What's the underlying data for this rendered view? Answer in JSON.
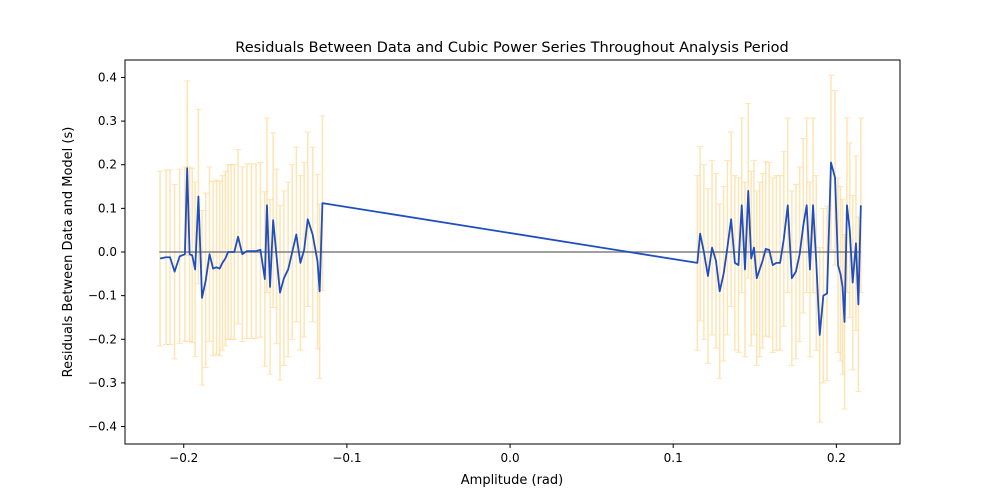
{
  "chart_data": {
    "type": "line",
    "title": "Residuals Between Data and Cubic Power Series Throughout Analysis Period",
    "xlabel": "Amplitude (rad)",
    "ylabel": "Residuals Between Data and Model (s)",
    "xlim": [
      -0.236,
      0.239
    ],
    "ylim": [
      -0.44,
      0.44
    ],
    "xticks": [
      -0.2,
      -0.1,
      0.0,
      0.1,
      0.2
    ],
    "xtick_labels": [
      "−0.2",
      "−0.1",
      "0.0",
      "0.1",
      "0.2"
    ],
    "yticks": [
      -0.4,
      -0.3,
      -0.2,
      -0.1,
      0.0,
      0.1,
      0.2,
      0.3,
      0.4
    ],
    "ytick_labels": [
      "−0.4",
      "−0.3",
      "−0.2",
      "−0.1",
      "0.0",
      "0.1",
      "0.2",
      "0.3",
      "0.4"
    ],
    "grid": false,
    "zero_line": {
      "y": 0.0,
      "x_range": [
        -0.215,
        0.215
      ],
      "color": "#808080"
    },
    "series": [
      {
        "kind": "line_with_errorbars",
        "line_color": "#1f4fbf",
        "errorbar_color": "#ffc45a",
        "x": [
          -0.2145,
          -0.2108,
          -0.2084,
          -0.2056,
          -0.2025,
          -0.1993,
          -0.1979,
          -0.1964,
          -0.1948,
          -0.193,
          -0.191,
          -0.1888,
          -0.1865,
          -0.1842,
          -0.182,
          -0.1799,
          -0.178,
          -0.1763,
          -0.1745,
          -0.1728,
          -0.171,
          -0.169,
          -0.1667,
          -0.1641,
          -0.1613,
          -0.1585,
          -0.1557,
          -0.153,
          -0.1503,
          -0.149,
          -0.1471,
          -0.1452,
          -0.1431,
          -0.141,
          -0.1386,
          -0.136,
          -0.1335,
          -0.131,
          -0.1285,
          -0.1262,
          -0.124,
          -0.121,
          -0.118,
          -0.1167,
          -0.115,
          0.1148,
          0.1165,
          0.1188,
          0.1213,
          0.1238,
          0.1262,
          0.1285,
          0.1309,
          0.1332,
          0.1355,
          0.1378,
          0.14,
          0.142,
          0.144,
          0.146,
          0.1478,
          0.1495,
          0.1512,
          0.153,
          0.1548,
          0.1567,
          0.1588,
          0.161,
          0.1632,
          0.1655,
          0.1678,
          0.1702,
          0.1727,
          0.1752,
          0.1775,
          0.1797,
          0.1818,
          0.1838,
          0.1857,
          0.1877,
          0.1898,
          0.192,
          0.1943,
          0.1967,
          0.1992,
          0.201,
          0.2025,
          0.2038,
          0.205,
          0.2065,
          0.2082,
          0.21,
          0.212,
          0.2135,
          0.215
        ],
        "y": [
          -0.015,
          -0.012,
          -0.012,
          -0.045,
          -0.01,
          -0.005,
          0.192,
          -0.005,
          -0.008,
          -0.04,
          0.127,
          -0.105,
          -0.065,
          -0.005,
          -0.038,
          -0.035,
          -0.038,
          -0.025,
          -0.015,
          0.0,
          0.0,
          0.0,
          0.035,
          -0.005,
          0.002,
          0.002,
          0.002,
          0.005,
          -0.062,
          0.107,
          -0.08,
          0.073,
          -0.01,
          -0.093,
          -0.06,
          -0.04,
          0.0,
          0.04,
          -0.025,
          0.005,
          0.075,
          0.04,
          -0.022,
          -0.09,
          0.112,
          -0.025,
          0.042,
          0.0,
          -0.055,
          0.01,
          -0.02,
          -0.09,
          -0.05,
          0.01,
          0.075,
          -0.025,
          -0.03,
          0.107,
          -0.04,
          0.14,
          -0.015,
          0.01,
          -0.06,
          -0.04,
          -0.02,
          0.007,
          0.005,
          -0.03,
          -0.025,
          -0.025,
          0.03,
          0.107,
          -0.06,
          -0.045,
          -0.005,
          0.06,
          0.107,
          -0.04,
          0.107,
          -0.025,
          -0.19,
          -0.1,
          -0.095,
          0.205,
          0.17,
          -0.03,
          -0.05,
          -0.08,
          -0.16,
          0.107,
          0.05,
          -0.07,
          0.02,
          -0.12,
          0.107
        ],
        "err": [
          0.2,
          0.2,
          0.2,
          0.2,
          0.2,
          0.2,
          0.2,
          0.2,
          0.2,
          0.2,
          0.2,
          0.2,
          0.2,
          0.2,
          0.2,
          0.2,
          0.2,
          0.2,
          0.2,
          0.2,
          0.2,
          0.2,
          0.2,
          0.2,
          0.2,
          0.2,
          0.2,
          0.2,
          0.2,
          0.2,
          0.2,
          0.2,
          0.2,
          0.2,
          0.2,
          0.2,
          0.2,
          0.2,
          0.2,
          0.2,
          0.2,
          0.2,
          0.2,
          0.2,
          0.2,
          0.2,
          0.2,
          0.2,
          0.2,
          0.2,
          0.2,
          0.2,
          0.2,
          0.2,
          0.2,
          0.2,
          0.2,
          0.2,
          0.2,
          0.2,
          0.2,
          0.2,
          0.2,
          0.2,
          0.2,
          0.2,
          0.2,
          0.2,
          0.2,
          0.2,
          0.2,
          0.2,
          0.2,
          0.2,
          0.2,
          0.2,
          0.2,
          0.2,
          0.2,
          0.2,
          0.2,
          0.2,
          0.2,
          0.2,
          0.2,
          0.2,
          0.2,
          0.2,
          0.2,
          0.2,
          0.2,
          0.2,
          0.2,
          0.2,
          0.2
        ]
      }
    ]
  }
}
